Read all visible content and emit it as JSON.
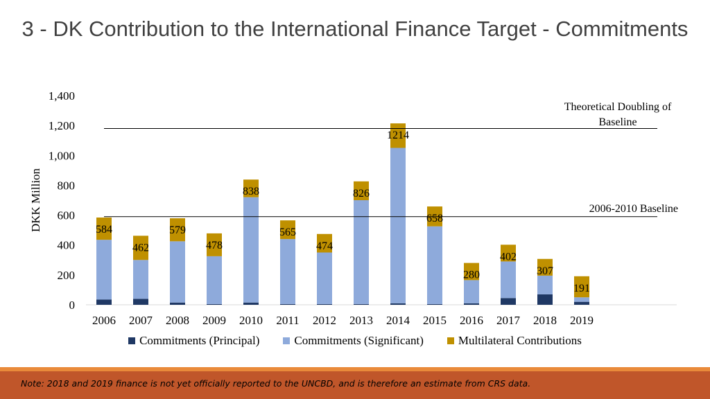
{
  "page": {
    "title": "3 - DK Contribution to the International Finance Target - Commitments",
    "footnote": "Note: 2018 and 2019 finance is not yet officially reported to the UNCBD, and is therefore an estimate from CRS data."
  },
  "colors": {
    "principal": "#1f3864",
    "significant": "#8eaadb",
    "multilateral": "#bf9000",
    "footer": "#c0562a",
    "footer_accent": "#e98a3a"
  },
  "chart_data": {
    "type": "bar",
    "stacked": true,
    "categories": [
      "2006",
      "2007",
      "2008",
      "2009",
      "2010",
      "2011",
      "2012",
      "2013",
      "2014",
      "2015",
      "2016",
      "2017",
      "2018",
      "2019"
    ],
    "series": [
      {
        "name": "Commitments (Principal)",
        "color": "#1f3864",
        "values": [
          35,
          40,
          15,
          5,
          15,
          5,
          5,
          5,
          10,
          5,
          10,
          45,
          70,
          20
        ]
      },
      {
        "name": "Commitments (Significant)",
        "color": "#8eaadb",
        "values": [
          400,
          260,
          410,
          320,
          705,
          435,
          345,
          695,
          1040,
          520,
          155,
          245,
          125,
          30
        ]
      },
      {
        "name": "Multilateral Contributions",
        "color": "#bf9000",
        "values": [
          149,
          162,
          154,
          153,
          118,
          125,
          124,
          126,
          164,
          133,
          115,
          112,
          112,
          141
        ]
      }
    ],
    "totals": [
      "584",
      "462",
      "579",
      "478",
      "838",
      "565",
      "474",
      "826",
      "1214",
      "658",
      "280",
      "402",
      "307",
      "191"
    ],
    "ylabel": "DKK Million",
    "ylim": [
      0,
      1400
    ],
    "yticks": [
      "0",
      "200",
      "400",
      "600",
      "800",
      "1,000",
      "1,200",
      "1,400"
    ],
    "ytick_values": [
      0,
      200,
      400,
      600,
      800,
      1000,
      1200,
      1400
    ],
    "reference_lines": [
      {
        "label": "Theoretical Doubling of Baseline",
        "value": 1180
      },
      {
        "label": "2006-2010 Baseline",
        "value": 590
      }
    ],
    "legend_position": "bottom",
    "grid": false
  }
}
